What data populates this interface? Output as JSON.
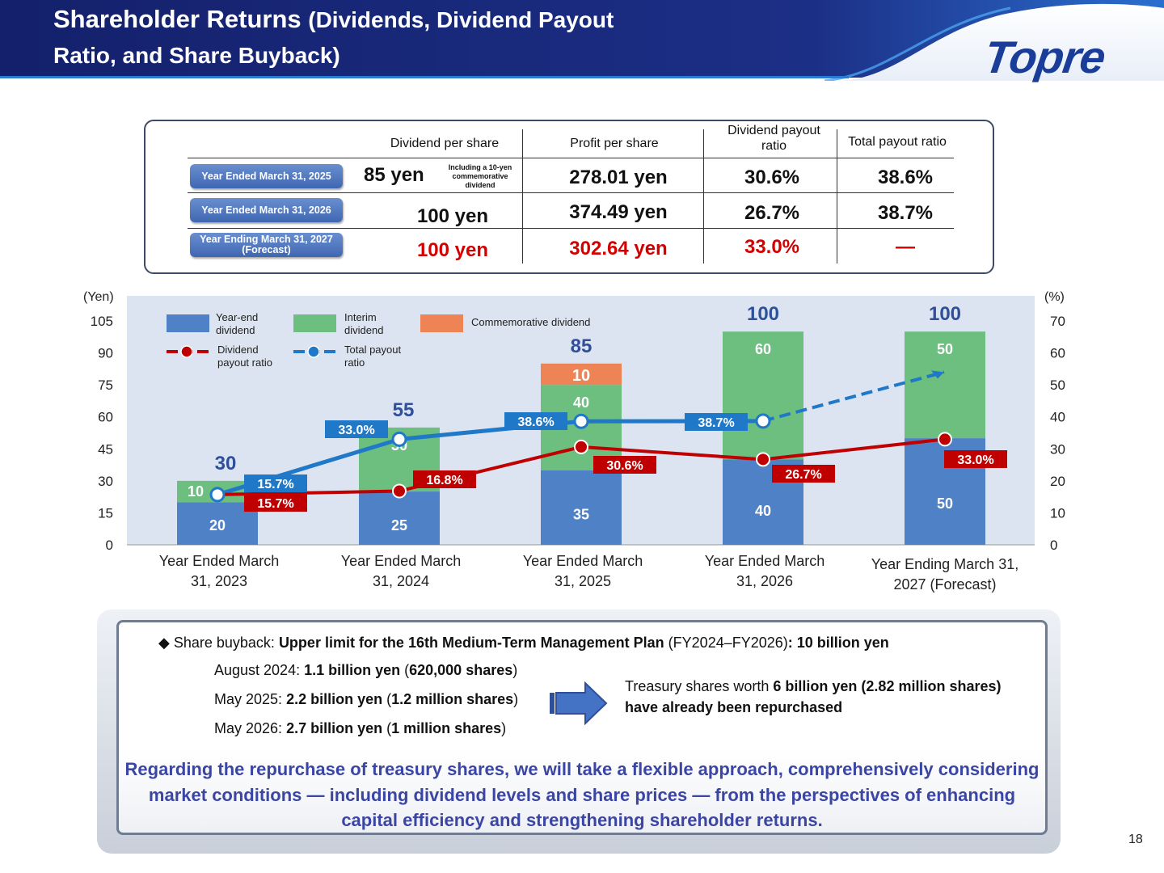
{
  "header": {
    "title_main": "Shareholder Returns",
    "title_sub_1": "(Dividends, Dividend Payout",
    "title_sub_2": "Ratio, and Share Buyback)",
    "logo": "Topre",
    "colors": {
      "band": "#1c2c7a",
      "accent": "#2a7bd6"
    }
  },
  "table": {
    "headers": [
      "Dividend per share",
      "Profit per share",
      "Dividend payout ratio",
      "Total payout ratio"
    ],
    "rows": [
      {
        "label": "Year Ended March 31, 2025",
        "label_2": "",
        "dps": "85 yen",
        "note": "Including a 10-yen commemorative dividend",
        "pps": "278.01 yen",
        "payout": "30.6%",
        "total": "38.6%",
        "highlight": false
      },
      {
        "label": "Year Ended March 31, 2026",
        "label_2": "",
        "dps": "100 yen",
        "note": "",
        "pps": "374.49 yen",
        "payout": "26.7%",
        "total": "38.7%",
        "highlight": false
      },
      {
        "label": "Year Ending March 31, 2027",
        "label_2": "(Forecast)",
        "dps": "100 yen",
        "note": "",
        "pps": "302.64 yen",
        "payout": "33.0%",
        "total": "—",
        "highlight": true
      }
    ]
  },
  "chart_data": {
    "type": "bar",
    "stacked": true,
    "categories": [
      "Year Ended March 31, 2023",
      "Year Ended March 31, 2024",
      "Year Ended March 31, 2025",
      "Year Ended March 31, 2026",
      "Year Ending March 31, 2027 (Forecast)"
    ],
    "category_lines": [
      [
        "Year Ended March",
        "31, 2023"
      ],
      [
        "Year Ended March",
        "31, 2024"
      ],
      [
        "Year Ended March",
        "31, 2025"
      ],
      [
        "Year Ended March",
        "31, 2026"
      ],
      [
        "Year Ending March 31,",
        "2027 (Forecast)"
      ]
    ],
    "series": [
      {
        "name": "Year-end dividend",
        "name_lines": [
          "Year-end",
          "dividend"
        ],
        "values": [
          20,
          25,
          35,
          40,
          50
        ],
        "color": "#4f81c7"
      },
      {
        "name": "Interim dividend",
        "name_lines": [
          "Interim",
          "dividend"
        ],
        "values": [
          10,
          30,
          40,
          60,
          50
        ],
        "color": "#6cbf7f"
      },
      {
        "name": "Commemorative dividend",
        "name_lines": [
          "Commemorative dividend"
        ],
        "values": [
          0,
          0,
          10,
          0,
          0
        ],
        "color": "#ee8456"
      }
    ],
    "totals": [
      30,
      55,
      85,
      100,
      100
    ],
    "line_series": [
      {
        "name": "Dividend payout ratio",
        "name_lines": [
          "Dividend",
          "payout ratio"
        ],
        "axis": "right",
        "values": [
          15.7,
          16.8,
          30.6,
          26.7,
          33.0
        ],
        "labels": [
          "15.7%",
          "16.8%",
          "30.6%",
          "26.7%",
          "33.0%"
        ],
        "color": "#c00000"
      },
      {
        "name": "Total payout ratio",
        "name_lines": [
          "Total payout",
          "ratio"
        ],
        "axis": "right",
        "values": [
          15.7,
          33.0,
          38.6,
          38.7,
          null
        ],
        "labels": [
          "15.7%",
          "33.0%",
          "38.6%",
          "38.7%",
          ""
        ],
        "projected_end": 54,
        "color": "#1f78c8"
      }
    ],
    "y_left": {
      "label": "(Yen)",
      "min": 0,
      "max": 105,
      "ticks": [
        0,
        15,
        30,
        45,
        60,
        75,
        90,
        105
      ]
    },
    "y_right": {
      "label": "(%)",
      "min": 0,
      "max": 70,
      "ticks": [
        0,
        10,
        20,
        30,
        40,
        50,
        60,
        70
      ]
    },
    "legend": "top-left",
    "plot_background": "#dbe4f0"
  },
  "buyback": {
    "line1_pre": "Share buyback: ",
    "line1_bold": "Upper limit for the 16th Medium-Term Management Plan",
    "line1_mid": " (FY2024–FY2026)",
    "line1_end": ": 10 billion yen",
    "items": [
      {
        "date": "August 2024: ",
        "amount": "1.1 billion yen",
        "open": " (",
        "shares": "620,000 shares",
        "close": ")"
      },
      {
        "date": "May 2025: ",
        "amount": "2.2 billion yen",
        "open": " (",
        "shares": "1.2 million shares",
        "close": ")"
      },
      {
        "date": "May 2026: ",
        "amount": "2.7 billion yen",
        "open": " (",
        "shares": "1 million shares",
        "close": ")"
      }
    ],
    "treasury_pre": "Treasury shares worth ",
    "treasury_bold": "6 billion yen (2.82 million shares)",
    "treasury_line2": "have already been repurchased",
    "closing": "Regarding the repurchase of treasury shares, we will take a flexible approach, comprehensively considering market conditions — including dividend levels and share prices — from the perspectives of enhancing capital efficiency and strengthening shareholder returns."
  },
  "page_number": "18"
}
